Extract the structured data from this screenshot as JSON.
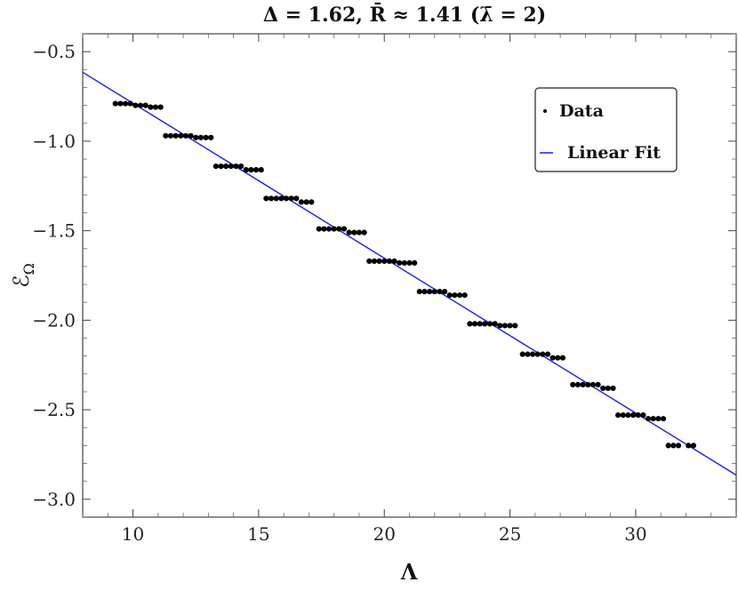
{
  "chart_data": {
    "type": "scatter",
    "title": "Δ = 1.62, R̄ ≈ 1.41 (λ̄ = 2)",
    "xlabel": "Λ",
    "ylabel": "ℰ_Ω",
    "xlim": [
      8,
      34
    ],
    "ylim": [
      -3.1,
      -0.4
    ],
    "x_ticks": [
      10,
      15,
      20,
      25,
      30
    ],
    "y_ticks": [
      -0.5,
      -1.0,
      -1.5,
      -2.0,
      -2.5,
      -3.0
    ],
    "x_tick_labels": [
      "10",
      "15",
      "20",
      "25",
      "30"
    ],
    "y_tick_labels": [
      "−0.5",
      "−1.0",
      "−1.5",
      "−2.0",
      "−2.5",
      "−3.0"
    ],
    "legend_position": "top-right",
    "series": [
      {
        "name": "Data",
        "kind": "points",
        "color": "#000000",
        "groups": [
          {
            "y": -0.79,
            "x": [
              9.3,
              9.5,
              9.7,
              9.9
            ]
          },
          {
            "y": -0.8,
            "x": [
              10.1,
              10.3,
              10.5
            ]
          },
          {
            "y": -0.81,
            "x": [
              10.7,
              10.9,
              11.1
            ]
          },
          {
            "y": -0.97,
            "x": [
              11.3,
              11.5,
              11.7,
              11.9,
              12.1,
              12.3
            ]
          },
          {
            "y": -0.98,
            "x": [
              12.5,
              12.7,
              12.9,
              13.1
            ]
          },
          {
            "y": -1.14,
            "x": [
              13.3,
              13.5,
              13.7,
              13.9,
              14.1,
              14.3
            ]
          },
          {
            "y": -1.16,
            "x": [
              14.5,
              14.7,
              14.9,
              15.1
            ]
          },
          {
            "y": -1.32,
            "x": [
              15.3,
              15.5,
              15.7,
              15.9,
              16.1,
              16.3,
              16.5
            ]
          },
          {
            "y": -1.34,
            "x": [
              16.7,
              16.9,
              17.1
            ]
          },
          {
            "y": -1.49,
            "x": [
              17.4,
              17.6,
              17.8,
              18.0,
              18.2,
              18.4
            ]
          },
          {
            "y": -1.51,
            "x": [
              18.6,
              18.8,
              19.0,
              19.2
            ]
          },
          {
            "y": -1.67,
            "x": [
              19.4,
              19.6,
              19.8,
              20.0,
              20.2,
              20.4
            ]
          },
          {
            "y": -1.68,
            "x": [
              20.6,
              20.8,
              21.0,
              21.2
            ]
          },
          {
            "y": -1.84,
            "x": [
              21.4,
              21.6,
              21.8,
              22.0,
              22.2,
              22.4
            ]
          },
          {
            "y": -1.86,
            "x": [
              22.6,
              22.8,
              23.0,
              23.2
            ]
          },
          {
            "y": -2.02,
            "x": [
              23.4,
              23.6,
              23.8,
              24.0,
              24.2,
              24.4
            ]
          },
          {
            "y": -2.03,
            "x": [
              24.6,
              24.8,
              25.0,
              25.2
            ]
          },
          {
            "y": -2.19,
            "x": [
              25.5,
              25.7,
              25.9,
              26.1,
              26.3,
              26.5
            ]
          },
          {
            "y": -2.21,
            "x": [
              26.7,
              26.9,
              27.1
            ]
          },
          {
            "y": -2.36,
            "x": [
              27.5,
              27.7,
              27.9,
              28.1,
              28.3,
              28.5
            ]
          },
          {
            "y": -2.38,
            "x": [
              28.7,
              28.9,
              29.1
            ]
          },
          {
            "y": -2.53,
            "x": [
              29.3,
              29.5,
              29.7,
              29.9,
              30.1,
              30.3
            ]
          },
          {
            "y": -2.55,
            "x": [
              30.5,
              30.7,
              30.9,
              31.1
            ]
          },
          {
            "y": -2.7,
            "x": [
              31.3,
              31.5,
              31.7
            ]
          },
          {
            "y": -2.7,
            "x": [
              32.1,
              32.3
            ]
          }
        ]
      },
      {
        "name": "Linear Fit",
        "kind": "line",
        "color": "#1a1aff",
        "x": [
          8,
          34
        ],
        "y": [
          -0.615,
          -2.865
        ]
      }
    ]
  }
}
